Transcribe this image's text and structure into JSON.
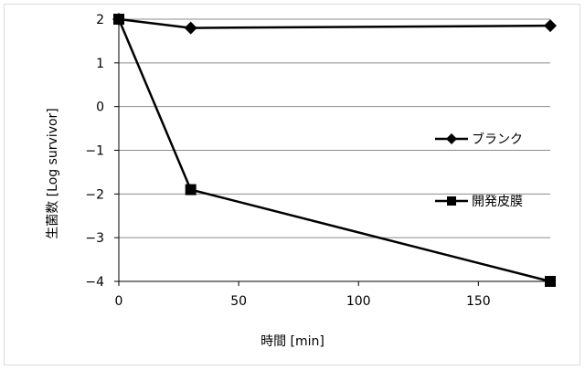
{
  "chart_data": {
    "type": "line",
    "xlabel": "時間 [min]",
    "ylabel": "生菌数 [Log survivor]",
    "xlim": [
      0,
      180
    ],
    "ylim": [
      -4,
      2
    ],
    "xticks": [
      0,
      50,
      100,
      150
    ],
    "yticks": [
      2,
      1,
      0,
      -1,
      -2,
      -3,
      -4
    ],
    "grid": {
      "y_major": true,
      "x_major": false
    },
    "legend_position": "right",
    "series": [
      {
        "name": "ブランク",
        "marker": "diamond",
        "color": "#000000",
        "points": [
          {
            "x": 0,
            "y": 2.0
          },
          {
            "x": 30,
            "y": 1.8
          },
          {
            "x": 180,
            "y": 1.85
          }
        ]
      },
      {
        "name": "開発皮膜",
        "marker": "square",
        "color": "#000000",
        "points": [
          {
            "x": 0,
            "y": 2.0
          },
          {
            "x": 30,
            "y": -1.9
          },
          {
            "x": 180,
            "y": -4.0
          }
        ]
      }
    ]
  }
}
